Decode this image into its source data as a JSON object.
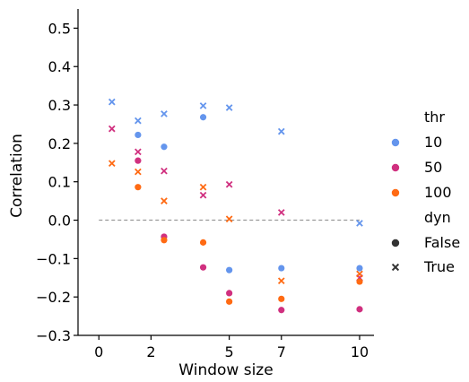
{
  "chart_data": {
    "type": "scatter",
    "xlabel": "Window size",
    "ylabel": "Correlation",
    "xlim": [
      -0.8,
      10.55
    ],
    "ylim": [
      -0.3,
      0.55
    ],
    "x_ticks": [
      0,
      2,
      5,
      7,
      10
    ],
    "x_tick_labels": [
      "0",
      "2",
      "5",
      "7",
      "10"
    ],
    "y_ticks": [
      -0.3,
      -0.2,
      -0.1,
      0.0,
      0.1,
      0.2,
      0.3,
      0.4,
      0.5
    ],
    "y_tick_labels": [
      "−0.3",
      "−0.2",
      "−0.1",
      "0.0",
      "0.1",
      "0.2",
      "0.3",
      "0.4",
      "0.5"
    ],
    "grid": false,
    "reference_line": {
      "y": 0.0,
      "style": "dashed",
      "color": "#999999"
    },
    "legend": {
      "placement": "right",
      "hue_title": "thr",
      "hue_entries": [
        {
          "label": "10",
          "color": "#6495ed"
        },
        {
          "label": "50",
          "color": "#d0307f"
        },
        {
          "label": "100",
          "color": "#ff6a13"
        }
      ],
      "style_title": "dyn",
      "style_entries": [
        {
          "label": "False",
          "marker": "circle"
        },
        {
          "label": "True",
          "marker": "x"
        }
      ]
    },
    "series": [
      {
        "thr": "10",
        "dyn": "False",
        "color": "#6495ed",
        "marker": "circle",
        "points": [
          [
            1.5,
            0.222
          ],
          [
            2.5,
            0.191
          ],
          [
            4.0,
            0.268
          ],
          [
            5.0,
            -0.13
          ],
          [
            7.0,
            -0.125
          ],
          [
            10.0,
            -0.125
          ]
        ]
      },
      {
        "thr": "10",
        "dyn": "True",
        "color": "#6495ed",
        "marker": "x",
        "points": [
          [
            0.5,
            0.308
          ],
          [
            1.5,
            0.259
          ],
          [
            2.5,
            0.277
          ],
          [
            4.0,
            0.298
          ],
          [
            5.0,
            0.293
          ],
          [
            7.0,
            0.231
          ],
          [
            10.0,
            -0.008
          ]
        ]
      },
      {
        "thr": "50",
        "dyn": "False",
        "color": "#d0307f",
        "marker": "circle",
        "points": [
          [
            1.5,
            0.155
          ],
          [
            2.5,
            -0.043
          ],
          [
            4.0,
            -0.123
          ],
          [
            5.0,
            -0.19
          ],
          [
            7.0,
            -0.234
          ],
          [
            10.0,
            -0.232
          ]
        ]
      },
      {
        "thr": "50",
        "dyn": "True",
        "color": "#d0307f",
        "marker": "x",
        "points": [
          [
            0.5,
            0.238
          ],
          [
            1.5,
            0.178
          ],
          [
            2.5,
            0.128
          ],
          [
            4.0,
            0.065
          ],
          [
            5.0,
            0.093
          ],
          [
            7.0,
            0.02
          ],
          [
            10.0,
            -0.15
          ]
        ]
      },
      {
        "thr": "100",
        "dyn": "False",
        "color": "#ff6a13",
        "marker": "circle",
        "points": [
          [
            1.5,
            0.086
          ],
          [
            2.5,
            -0.052
          ],
          [
            4.0,
            -0.058
          ],
          [
            5.0,
            -0.212
          ],
          [
            7.0,
            -0.205
          ],
          [
            10.0,
            -0.16
          ]
        ]
      },
      {
        "thr": "100",
        "dyn": "True",
        "color": "#ff6a13",
        "marker": "x",
        "points": [
          [
            0.5,
            0.148
          ],
          [
            1.5,
            0.126
          ],
          [
            2.5,
            0.05
          ],
          [
            4.0,
            0.086
          ],
          [
            5.0,
            0.003
          ],
          [
            7.0,
            -0.158
          ],
          [
            10.0,
            -0.14
          ]
        ]
      }
    ]
  }
}
